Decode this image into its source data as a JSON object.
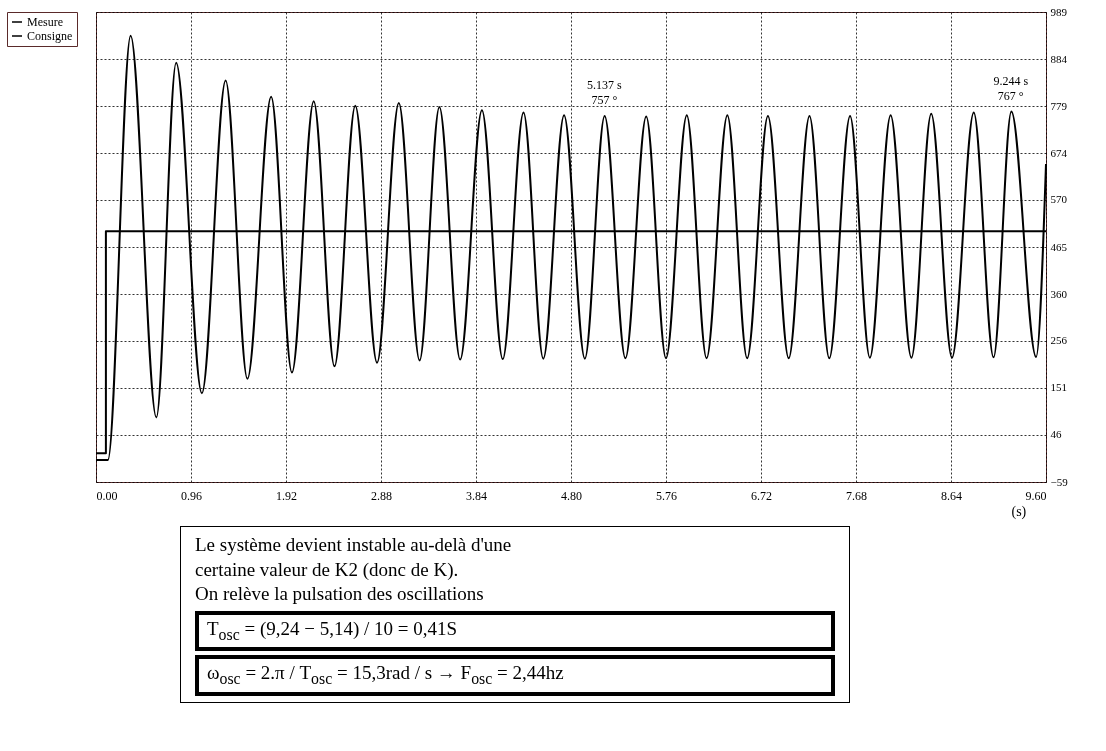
{
  "chart_data": {
    "type": "line",
    "xlabel": "(s)",
    "xlim": [
      0,
      9.6
    ],
    "ylim": [
      -59,
      989
    ],
    "xticks": [
      {
        "value": 0,
        "label": "0.00"
      },
      {
        "value": 0.96,
        "label": "0.96"
      },
      {
        "value": 1.92,
        "label": "1.92"
      },
      {
        "value": 2.88,
        "label": "2.88"
      },
      {
        "value": 3.84,
        "label": "3.84"
      },
      {
        "value": 4.8,
        "label": "4.80"
      },
      {
        "value": 5.76,
        "label": "5.76"
      },
      {
        "value": 6.72,
        "label": "6.72"
      },
      {
        "value": 7.68,
        "label": "7.68"
      },
      {
        "value": 8.64,
        "label": "8.64"
      },
      {
        "value": 9.6,
        "label": "9.60"
      }
    ],
    "yticks": [
      -59,
      46,
      151,
      256,
      360,
      465,
      570,
      674,
      779,
      884,
      989
    ],
    "grid": true,
    "legend": "top left",
    "series": [
      {
        "name": "Mesure",
        "color": "#000000",
        "x": [
          0,
          0.12,
          0.35,
          0.61,
          0.81,
          1.07,
          1.31,
          1.53,
          1.77,
          1.98,
          2.2,
          2.41,
          2.62,
          2.84,
          3.06,
          3.27,
          3.47,
          3.68,
          3.9,
          4.11,
          4.32,
          4.52,
          4.73,
          4.94,
          5.14,
          5.35,
          5.56,
          5.76,
          5.97,
          6.17,
          6.38,
          6.58,
          6.79,
          7.0,
          7.21,
          7.41,
          7.62,
          7.82,
          8.03,
          8.24,
          8.44,
          8.65,
          8.87,
          9.07,
          9.25,
          9.5,
          9.6
        ],
        "values": [
          -10,
          -10,
          936,
          85,
          876,
          139,
          836,
          171,
          800,
          185,
          790,
          199,
          780,
          207,
          786,
          212,
          777,
          214,
          770,
          215,
          765,
          216,
          759,
          216,
          757,
          217,
          756,
          217,
          759,
          217,
          759,
          217,
          757,
          217,
          757,
          217,
          757,
          218,
          759,
          218,
          762,
          218,
          765,
          219,
          767,
          220,
          650
        ]
      },
      {
        "name": "Consigne",
        "color": "#000000",
        "type": "step",
        "x": [
          0,
          0.1,
          9.6
        ],
        "values": [
          5,
          500,
          500
        ]
      }
    ],
    "annotations": [
      {
        "text": "5.137 s\n757 °",
        "x": 5.137,
        "y": 757
      },
      {
        "text": "9.244 s\n767 °",
        "x": 9.244,
        "y": 767
      },
      "Le système devient instable au-delà d'une",
      "certaine valeur de K2 (donc de K).",
      "On relève la pulsation des oscillations",
      "T$_{osc}$ = (9,24 − 5,14) / 10 = 0,41S",
      "ω$_{osc}$ = 2.π / T$_{osc}$ = 15,3rad / s → F$_{osc}$ = 2,44hz"
    ]
  }
}
